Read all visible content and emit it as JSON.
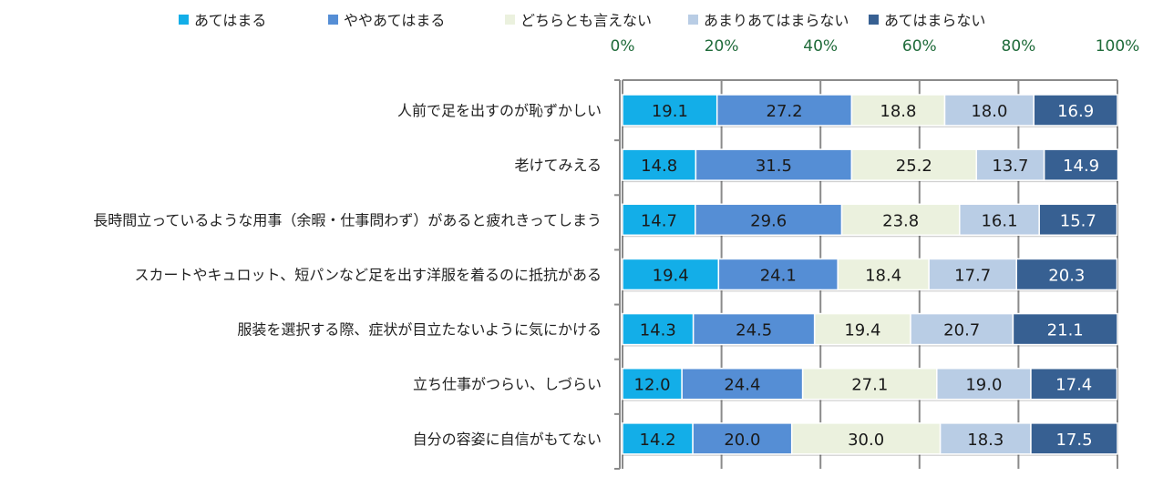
{
  "chart_data": {
    "type": "bar",
    "orientation": "horizontal",
    "stacked": "percent",
    "categories": [
      "人前で足を出すのが恥ずかしい",
      "老けてみえる",
      "長時間立っているような用事（余暇・仕事問わず）があると疲れきってしまう",
      "スカートやキュロット、短パンなど足を出す洋服を着るのに抵抗がある",
      "服装を選択する際、症状が目立たないように気にかける",
      "立ち仕事がつらい、しづらい",
      "自分の容姿に自信がもてない"
    ],
    "series": [
      {
        "name": "あてはまる",
        "color": "#13aee8",
        "label_color": "#1a1a1a",
        "values": [
          19.1,
          14.8,
          14.7,
          19.4,
          14.3,
          12.0,
          14.2
        ]
      },
      {
        "name": "ややあてはまる",
        "color": "#558ed5",
        "label_color": "#1a1a1a",
        "values": [
          27.2,
          31.5,
          29.6,
          24.1,
          24.5,
          24.4,
          20.0
        ]
      },
      {
        "name": "どちらとも言えない",
        "color": "#ebf1de",
        "label_color": "#1a1a1a",
        "values": [
          18.8,
          25.2,
          23.8,
          18.4,
          19.4,
          27.1,
          30.0
        ]
      },
      {
        "name": "あまりあてはまらない",
        "color": "#b9cde5",
        "label_color": "#1a1a1a",
        "values": [
          18.0,
          13.7,
          16.1,
          17.7,
          20.7,
          19.0,
          18.3
        ]
      },
      {
        "name": "あてはまらない",
        "color": "#376092",
        "label_color": "#ffffff",
        "values": [
          16.9,
          14.9,
          15.7,
          20.3,
          21.1,
          17.4,
          17.5
        ]
      }
    ],
    "x_ticks": [
      "0%",
      "20%",
      "40%",
      "60%",
      "80%",
      "100%"
    ],
    "xlim": [
      0,
      100
    ],
    "axis_position": "top",
    "tick_color": "#1f6b3a",
    "legend_position": "top",
    "grid": true
  }
}
